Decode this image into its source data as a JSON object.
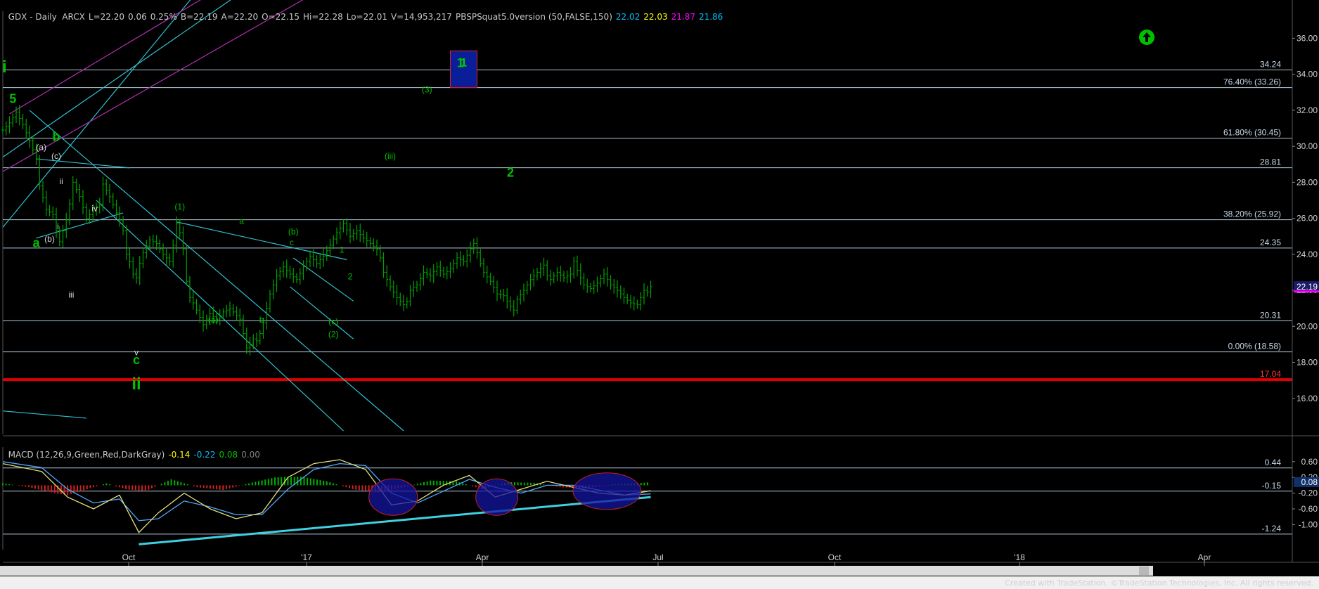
{
  "header": {
    "symbol": "GDX - Daily  ARCX",
    "last": "L=22.20",
    "change": "0.06",
    "change_pct": "0.25%",
    "bid": "B=22.19",
    "ask": "A=22.20",
    "open": "O=22.15",
    "high": "Hi=22.28",
    "low": "Lo=22.01",
    "volume": "V=14,953,217",
    "indicator": "PBSPSquat5.0version (50,FALSE,150)",
    "ind_values": [
      "22.02",
      "22.03",
      "21.87",
      "21.86"
    ],
    "ind_colors": [
      "#00bfff",
      "#ffff00",
      "#ff00ff",
      "#00bfff"
    ]
  },
  "macd_header": {
    "label": "MACD (12,26,9,Green,Red,DarkGray)",
    "values": [
      "-0.14",
      "-0.22",
      "0.08",
      "0.00"
    ],
    "colors": [
      "#ffff00",
      "#00bfff",
      "#00c000",
      "#808080"
    ]
  },
  "footer": "Created with TradeStation. ©TradeStation Technologies, Inc. All rights reserved.",
  "colors": {
    "background": "#000000",
    "price_bars": "#00a000",
    "channel": "#30c0d0",
    "fib_lines": "#b0c8d8",
    "support": "#e00000",
    "magenta": "#b030b0",
    "label_green": "#00c000",
    "label_white": "#d8d8d8",
    "target_box": "#0a1e9a",
    "target_border": "#e02020"
  },
  "chart_data": [
    {
      "type": "candlestick",
      "title": "GDX - Daily",
      "ylim": [
        14,
        37.5
      ],
      "y_ticks": [
        "16.00",
        "18.00",
        "20.00",
        "22.00",
        "24.00",
        "26.00",
        "28.00",
        "30.00",
        "32.00",
        "34.00",
        "36.00"
      ],
      "x_ticks": [
        "Oct",
        "'17",
        "Apr",
        "Jul",
        "Oct",
        "'18",
        "Apr"
      ],
      "last_price": "22.19",
      "close_path": [
        [
          0,
          30.9
        ],
        [
          2,
          31.3
        ],
        [
          4,
          31.9
        ],
        [
          6,
          31.2
        ],
        [
          8,
          30.3
        ],
        [
          10,
          29.3
        ],
        [
          11,
          27.8
        ],
        [
          13,
          26.5
        ],
        [
          15,
          26.2
        ],
        [
          16,
          25.3
        ],
        [
          17,
          24.7
        ],
        [
          19,
          25.9
        ],
        [
          20,
          26.8
        ],
        [
          21,
          28.0
        ],
        [
          23,
          27.2
        ],
        [
          25,
          26.0
        ],
        [
          27,
          26.4
        ],
        [
          29,
          26.8
        ],
        [
          30,
          27.9
        ],
        [
          32,
          27.2
        ],
        [
          34,
          26.3
        ],
        [
          35,
          25.9
        ],
        [
          36,
          25.3
        ],
        [
          37,
          24.0
        ],
        [
          38,
          23.6
        ],
        [
          39,
          22.9
        ],
        [
          40,
          22.7
        ],
        [
          41,
          23.5
        ],
        [
          42,
          24.1
        ],
        [
          44,
          24.8
        ],
        [
          46,
          24.6
        ],
        [
          48,
          24.0
        ],
        [
          50,
          23.6
        ],
        [
          51,
          24.5
        ],
        [
          52,
          25.7
        ],
        [
          53,
          25.2
        ],
        [
          54,
          24.3
        ],
        [
          55,
          22.5
        ],
        [
          56,
          21.6
        ],
        [
          57,
          21.3
        ],
        [
          58,
          20.9
        ],
        [
          59,
          20.5
        ],
        [
          60,
          20.1
        ],
        [
          62,
          20.7
        ],
        [
          64,
          20.4
        ],
        [
          66,
          20.8
        ],
        [
          68,
          21.0
        ],
        [
          70,
          20.6
        ],
        [
          71,
          20.4
        ],
        [
          72,
          19.6
        ],
        [
          73,
          18.8
        ],
        [
          74,
          19.0
        ],
        [
          75,
          19.3
        ],
        [
          76,
          19.2
        ],
        [
          77,
          19.6
        ],
        [
          78,
          20.2
        ],
        [
          79,
          21.0
        ],
        [
          80,
          21.8
        ],
        [
          81,
          22.3
        ],
        [
          82,
          22.8
        ],
        [
          84,
          23.3
        ],
        [
          86,
          22.9
        ],
        [
          88,
          22.6
        ],
        [
          90,
          23.3
        ],
        [
          92,
          23.9
        ],
        [
          94,
          23.5
        ],
        [
          96,
          23.9
        ],
        [
          98,
          24.5
        ],
        [
          100,
          25.2
        ],
        [
          102,
          25.7
        ],
        [
          104,
          25.0
        ],
        [
          106,
          25.3
        ],
        [
          108,
          24.9
        ],
        [
          110,
          24.6
        ],
        [
          112,
          24.3
        ],
        [
          113,
          23.8
        ],
        [
          114,
          23.0
        ],
        [
          116,
          22.2
        ],
        [
          118,
          21.6
        ],
        [
          120,
          21.2
        ],
        [
          121,
          21.4
        ],
        [
          122,
          22.0
        ],
        [
          124,
          22.3
        ],
        [
          126,
          23.0
        ],
        [
          128,
          22.8
        ],
        [
          130,
          23.3
        ],
        [
          132,
          22.9
        ],
        [
          134,
          23.2
        ],
        [
          136,
          23.8
        ],
        [
          138,
          23.6
        ],
        [
          140,
          24.3
        ],
        [
          141,
          24.6
        ],
        [
          142,
          24.1
        ],
        [
          143,
          23.5
        ],
        [
          144,
          23.0
        ],
        [
          146,
          22.5
        ],
        [
          148,
          21.8
        ],
        [
          150,
          21.7
        ],
        [
          152,
          21.1
        ],
        [
          153,
          20.9
        ],
        [
          154,
          21.5
        ],
        [
          156,
          22.0
        ],
        [
          158,
          22.6
        ],
        [
          160,
          23.0
        ],
        [
          162,
          23.4
        ],
        [
          163,
          22.8
        ],
        [
          164,
          22.6
        ],
        [
          166,
          23.0
        ],
        [
          168,
          22.7
        ],
        [
          170,
          22.9
        ],
        [
          171,
          23.6
        ],
        [
          172,
          23.1
        ],
        [
          174,
          22.3
        ],
        [
          176,
          22.1
        ],
        [
          178,
          22.4
        ],
        [
          180,
          22.9
        ],
        [
          182,
          22.3
        ],
        [
          184,
          22.0
        ],
        [
          186,
          21.6
        ],
        [
          188,
          21.3
        ],
        [
          190,
          21.2
        ],
        [
          191,
          21.6
        ],
        [
          192,
          22.0
        ],
        [
          193,
          21.9
        ],
        [
          194,
          22.2
        ]
      ],
      "last_bar_index": 194,
      "horizontal_levels": [
        {
          "value": 34.24,
          "label": "34.24"
        },
        {
          "value": 33.26,
          "label": "76.40% (33.26)"
        },
        {
          "value": 30.45,
          "label": "61.80% (30.45)"
        },
        {
          "value": 28.81,
          "label": "28.81"
        },
        {
          "value": 25.92,
          "label": "38.20% (25.92)"
        },
        {
          "value": 24.35,
          "label": "24.35"
        },
        {
          "value": 20.31,
          "label": "20.31"
        },
        {
          "value": 18.58,
          "label": "0.00% (18.58)"
        },
        {
          "value": 17.04,
          "label": "17.04"
        }
      ],
      "wave_labels_green_large": [
        {
          "text": "i",
          "x": 0.5,
          "y": 34.1
        },
        {
          "text": "5",
          "x": 3,
          "y": 32.4
        },
        {
          "text": "b",
          "x": 16,
          "y": 30.3
        },
        {
          "text": "a",
          "x": 10,
          "y": 24.4
        },
        {
          "text": "c",
          "x": 40,
          "y": 17.9
        },
        {
          "text": "ii",
          "x": 40,
          "y": 16.5
        },
        {
          "text": "1",
          "x": 137,
          "y": 34.4
        },
        {
          "text": "2",
          "x": 152,
          "y": 28.3
        }
      ],
      "wave_labels_green_small": [
        {
          "text": "(1)",
          "x": 53,
          "y": 26.5
        },
        {
          "text": "(a)",
          "x": 63,
          "y": 20.2
        },
        {
          "text": "a",
          "x": 71.5,
          "y": 25.7
        },
        {
          "text": "b",
          "x": 77.5,
          "y": 20.2
        },
        {
          "text": "(b)",
          "x": 87,
          "y": 25.1
        },
        {
          "text": "c",
          "x": 86.5,
          "y": 24.5
        },
        {
          "text": "1",
          "x": 101.5,
          "y": 24.1
        },
        {
          "text": "2",
          "x": 104,
          "y": 22.6
        },
        {
          "text": "(c)",
          "x": 99,
          "y": 20.1
        },
        {
          "text": "(2)",
          "x": 99,
          "y": 19.4
        },
        {
          "text": "(iii)",
          "x": 116,
          "y": 29.3
        },
        {
          "text": "(3)",
          "x": 127,
          "y": 33.0
        }
      ],
      "wave_labels_white": [
        {
          "text": "(a)",
          "x": 11.5,
          "y": 29.8
        },
        {
          "text": "(c)",
          "x": 16,
          "y": 29.3
        },
        {
          "text": "(b)",
          "x": 14,
          "y": 24.7
        },
        {
          "text": "ii",
          "x": 17.5,
          "y": 27.9
        },
        {
          "text": "i",
          "x": 16.5,
          "y": 25.4
        },
        {
          "text": "iv",
          "x": 27.5,
          "y": 26.4
        },
        {
          "text": "iii",
          "x": 20.5,
          "y": 21.6
        },
        {
          "text": "v",
          "x": 40,
          "y": 18.4
        }
      ],
      "target_box": {
        "label": "1",
        "x_start": 134,
        "x_end": 142,
        "y_low": 33.26,
        "y_high": 35.3
      }
    },
    {
      "type": "bar",
      "title": "MACD (12,26,9,Green,Red,DarkGray)",
      "ylim": [
        -1.6,
        0.9
      ],
      "y_ticks": [
        "0.60",
        "0.20",
        "-0.20",
        "-0.60",
        "-1.00"
      ],
      "level_labels": [
        {
          "value": 0.44,
          "label": "0.44"
        },
        {
          "value": -0.15,
          "label": "-0.15"
        },
        {
          "value": -1.24,
          "label": "-1.24"
        }
      ],
      "last_value": "0.08",
      "macd_path": [
        [
          0,
          0.55
        ],
        [
          6,
          0.35
        ],
        [
          10,
          -0.3
        ],
        [
          14,
          -0.6
        ],
        [
          18,
          -0.25
        ],
        [
          21,
          -1.2
        ],
        [
          24,
          -0.7
        ],
        [
          28,
          -0.2
        ],
        [
          32,
          -0.6
        ],
        [
          36,
          -0.85
        ],
        [
          40,
          -0.7
        ],
        [
          44,
          0.2
        ],
        [
          48,
          0.55
        ],
        [
          52,
          0.65
        ],
        [
          56,
          0.4
        ],
        [
          60,
          -0.5
        ],
        [
          64,
          -0.4
        ],
        [
          68,
          0.0
        ],
        [
          72,
          0.25
        ],
        [
          76,
          -0.3
        ],
        [
          80,
          -0.1
        ],
        [
          84,
          0.1
        ],
        [
          88,
          -0.05
        ],
        [
          92,
          -0.2
        ],
        [
          96,
          -0.25
        ],
        [
          100,
          -0.14
        ]
      ],
      "signal_path": [
        [
          0,
          0.6
        ],
        [
          6,
          0.45
        ],
        [
          10,
          -0.1
        ],
        [
          14,
          -0.45
        ],
        [
          18,
          -0.35
        ],
        [
          21,
          -0.9
        ],
        [
          24,
          -0.85
        ],
        [
          28,
          -0.4
        ],
        [
          32,
          -0.55
        ],
        [
          36,
          -0.75
        ],
        [
          40,
          -0.75
        ],
        [
          44,
          -0.1
        ],
        [
          48,
          0.4
        ],
        [
          52,
          0.55
        ],
        [
          56,
          0.5
        ],
        [
          60,
          -0.2
        ],
        [
          64,
          -0.45
        ],
        [
          68,
          -0.15
        ],
        [
          72,
          0.15
        ],
        [
          76,
          -0.05
        ],
        [
          80,
          -0.2
        ],
        [
          84,
          0.0
        ],
        [
          88,
          0.0
        ],
        [
          92,
          -0.12
        ],
        [
          96,
          -0.25
        ],
        [
          100,
          -0.22
        ]
      ],
      "histogram": [
        [
          0,
          0.05
        ],
        [
          4,
          -0.05
        ],
        [
          8,
          -0.2
        ],
        [
          10,
          -0.25
        ],
        [
          12,
          -0.15
        ],
        [
          16,
          0.05
        ],
        [
          19,
          -0.1
        ],
        [
          22,
          -0.15
        ],
        [
          26,
          0.15
        ],
        [
          30,
          -0.05
        ],
        [
          34,
          -0.12
        ],
        [
          38,
          0.05
        ],
        [
          42,
          0.2
        ],
        [
          46,
          0.22
        ],
        [
          50,
          0.1
        ],
        [
          54,
          -0.1
        ],
        [
          58,
          -0.18
        ],
        [
          62,
          -0.05
        ],
        [
          66,
          0.12
        ],
        [
          70,
          0.1
        ],
        [
          74,
          -0.1
        ],
        [
          78,
          0.08
        ],
        [
          82,
          0.06
        ],
        [
          86,
          -0.05
        ],
        [
          90,
          -0.08
        ],
        [
          94,
          0.02
        ],
        [
          98,
          0.05
        ],
        [
          100,
          0.08
        ]
      ],
      "ellipses": [
        {
          "x_start": 56.5,
          "x_end": 64,
          "y_center": -0.3
        },
        {
          "x_start": 73,
          "x_end": 79.5,
          "y_center": -0.3
        },
        {
          "x_start": 88,
          "x_end": 98.5,
          "y_center": -0.15
        }
      ]
    }
  ]
}
